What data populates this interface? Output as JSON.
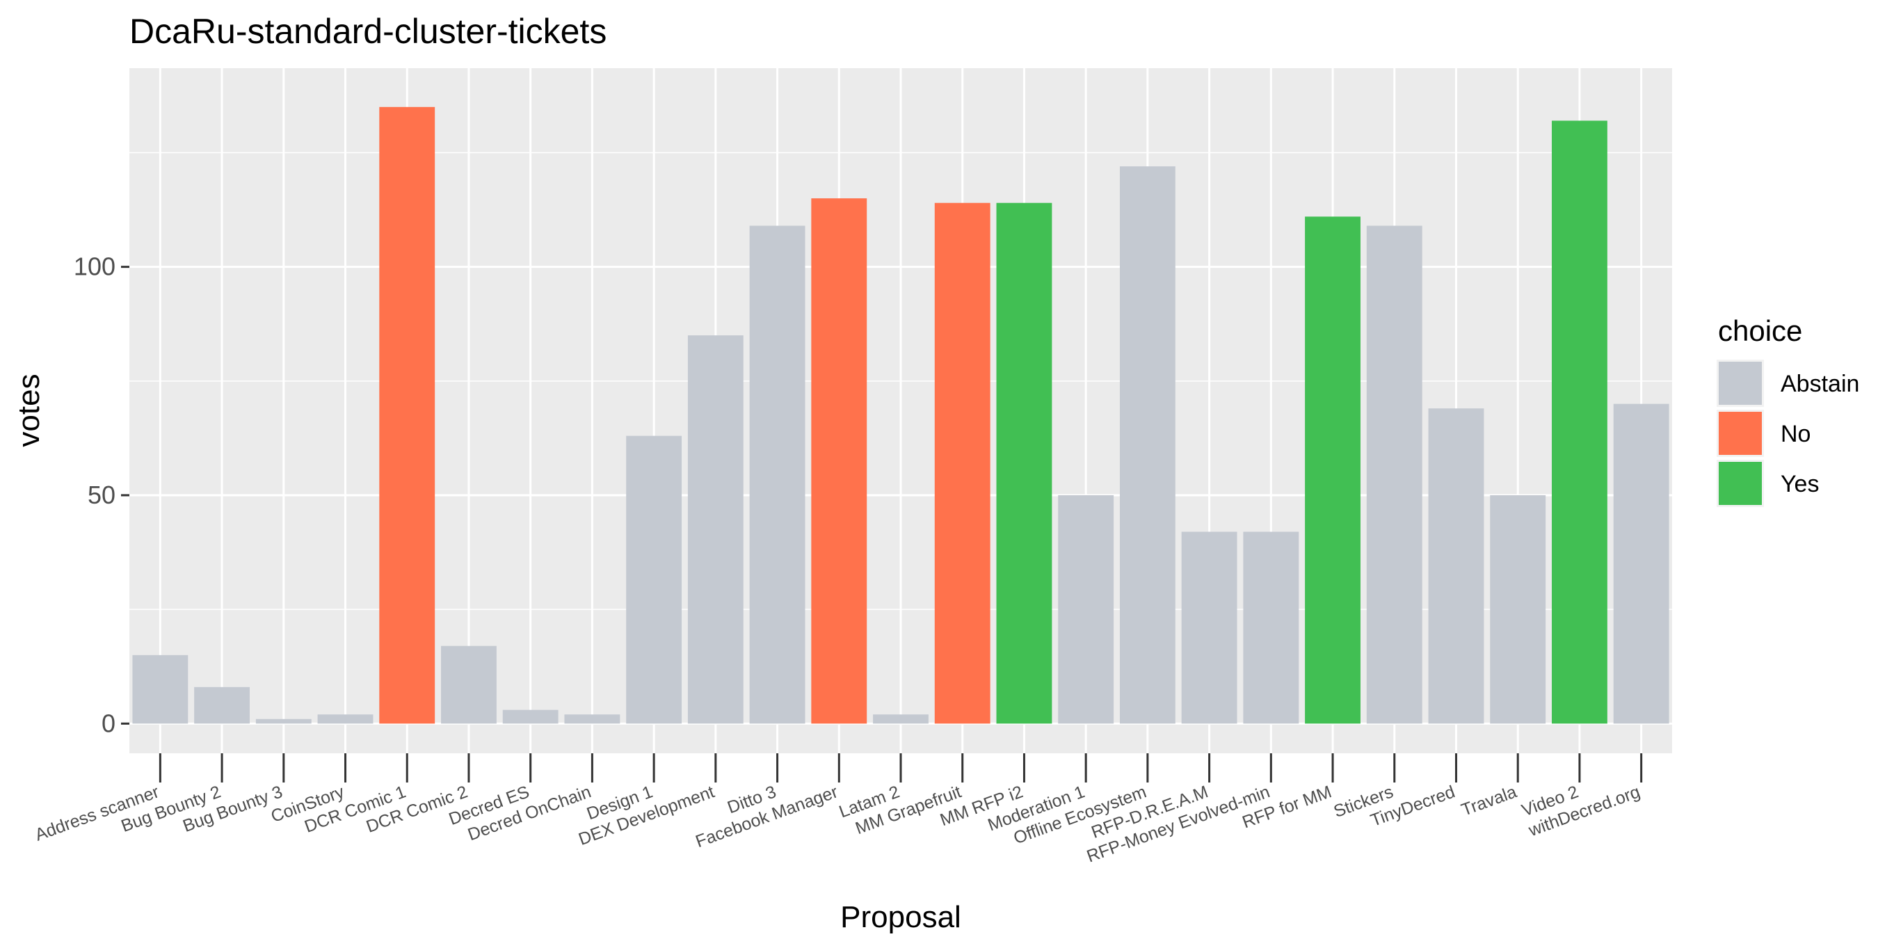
{
  "chart_data": {
    "type": "bar",
    "title": "DcaRu-standard-cluster-tickets",
    "xlabel": "Proposal",
    "ylabel": "votes",
    "ylim": [
      -6.5,
      143.5
    ],
    "yticks": [
      0,
      50,
      100
    ],
    "grid": true,
    "legend": {
      "title": "choice",
      "placement": "right",
      "entries": [
        {
          "name": "Abstain",
          "color": "#c4c9d1"
        },
        {
          "name": "No",
          "color": "#ff724c"
        },
        {
          "name": "Yes",
          "color": "#41bf53"
        }
      ]
    },
    "categories": [
      "Address scanner",
      "Bug Bounty 2",
      "Bug Bounty 3",
      "CoinStory",
      "DCR Comic 1",
      "DCR Comic 2",
      "Decred ES",
      "Decred OnChain",
      "Design 1",
      "DEX Development",
      "Ditto 3",
      "Facebook Manager",
      "Latam 2",
      "MM Grapefruit",
      "MM RFP i2",
      "Moderation 1",
      "Offline Ecosystem",
      "RFP-D.R.E.A.M",
      "RFP-Money Evolved-min",
      "RFP for MM",
      "Stickers",
      "TinyDecred",
      "Travala",
      "Video 2",
      "withDecred.org"
    ],
    "values": [
      15,
      8,
      1,
      2,
      135,
      17,
      3,
      2,
      63,
      85,
      109,
      115,
      2,
      114,
      114,
      50,
      122,
      42,
      42,
      111,
      109,
      69,
      50,
      132,
      70
    ],
    "choices": [
      "Abstain",
      "Abstain",
      "Abstain",
      "Abstain",
      "No",
      "Abstain",
      "Abstain",
      "Abstain",
      "Abstain",
      "Abstain",
      "Abstain",
      "No",
      "Abstain",
      "No",
      "Yes",
      "Abstain",
      "Abstain",
      "Abstain",
      "Abstain",
      "Yes",
      "Abstain",
      "Abstain",
      "Abstain",
      "Yes",
      "Abstain"
    ]
  }
}
